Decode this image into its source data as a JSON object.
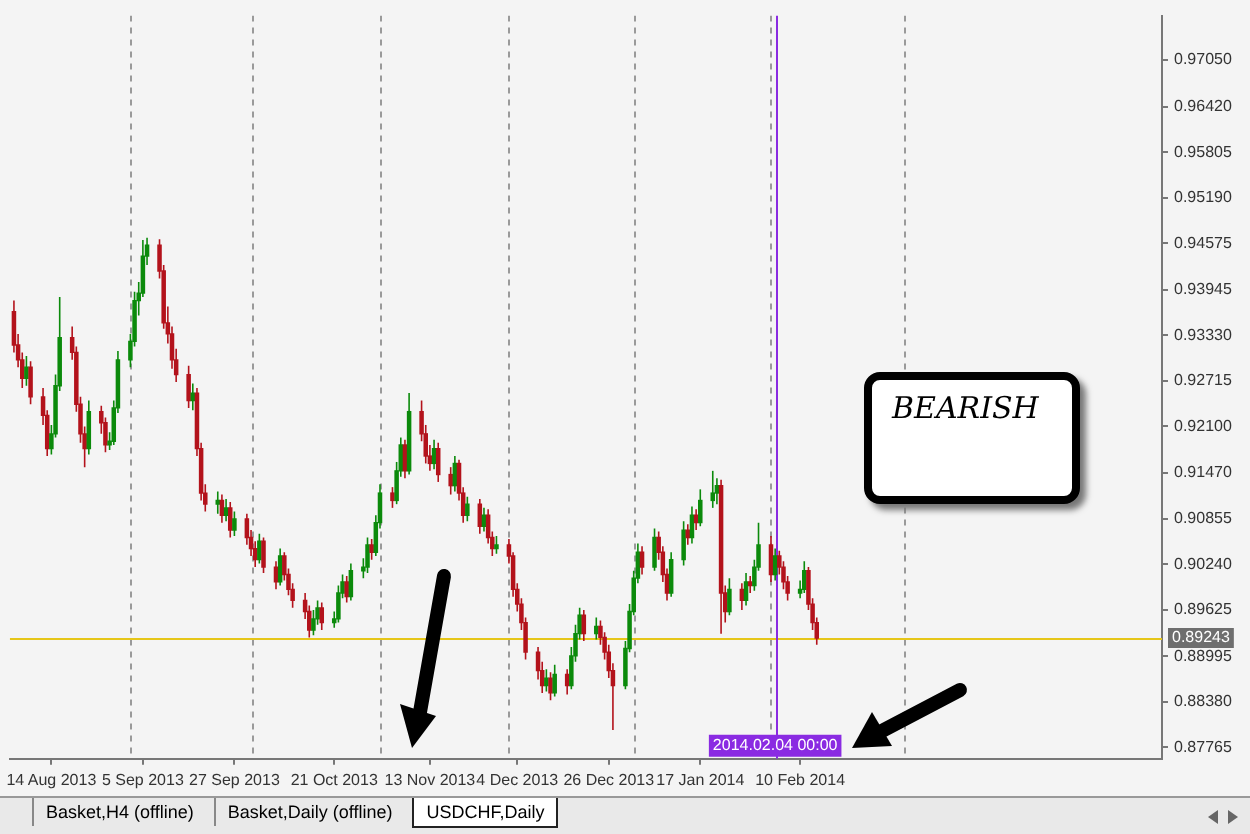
{
  "chart_data": {
    "type": "candlestick",
    "x": [
      "2013-08-05",
      "2013-08-06",
      "2013-08-07",
      "2013-08-08",
      "2013-08-09",
      "2013-08-12",
      "2013-08-13",
      "2013-08-14",
      "2013-08-15",
      "2013-08-16",
      "2013-08-19",
      "2013-08-20",
      "2013-08-21",
      "2013-08-22",
      "2013-08-23",
      "2013-08-26",
      "2013-08-27",
      "2013-08-28",
      "2013-08-29",
      "2013-08-30",
      "2013-09-02",
      "2013-09-03",
      "2013-09-04",
      "2013-09-05",
      "2013-09-06",
      "2013-09-09",
      "2013-09-10",
      "2013-09-11",
      "2013-09-12",
      "2013-09-13",
      "2013-09-16",
      "2013-09-17",
      "2013-09-18",
      "2013-09-19",
      "2013-09-20",
      "2013-09-23",
      "2013-09-24",
      "2013-09-25",
      "2013-09-26",
      "2013-09-27",
      "2013-09-30",
      "2013-10-01",
      "2013-10-02",
      "2013-10-03",
      "2013-10-04",
      "2013-10-07",
      "2013-10-08",
      "2013-10-09",
      "2013-10-10",
      "2013-10-11",
      "2013-10-14",
      "2013-10-15",
      "2013-10-16",
      "2013-10-17",
      "2013-10-18",
      "2013-10-21",
      "2013-10-22",
      "2013-10-23",
      "2013-10-24",
      "2013-10-25",
      "2013-10-28",
      "2013-10-29",
      "2013-10-30",
      "2013-10-31",
      "2013-11-01",
      "2013-11-04",
      "2013-11-05",
      "2013-11-06",
      "2013-11-07",
      "2013-11-08",
      "2013-11-11",
      "2013-11-12",
      "2013-11-13",
      "2013-11-14",
      "2013-11-15",
      "2013-11-18",
      "2013-11-19",
      "2013-11-20",
      "2013-11-21",
      "2013-11-22",
      "2013-11-25",
      "2013-11-26",
      "2013-11-27",
      "2013-11-28",
      "2013-11-29",
      "2013-12-02",
      "2013-12-03",
      "2013-12-04",
      "2013-12-05",
      "2013-12-06",
      "2013-12-09",
      "2013-12-10",
      "2013-12-11",
      "2013-12-12",
      "2013-12-13",
      "2013-12-16",
      "2013-12-17",
      "2013-12-18",
      "2013-12-19",
      "2013-12-20",
      "2013-12-23",
      "2013-12-24",
      "2013-12-25",
      "2013-12-26",
      "2013-12-27",
      "2013-12-30",
      "2013-12-31",
      "2014-01-01",
      "2014-01-02",
      "2014-01-03",
      "2014-01-06",
      "2014-01-07",
      "2014-01-08",
      "2014-01-09",
      "2014-01-10",
      "2014-01-13",
      "2014-01-14",
      "2014-01-15",
      "2014-01-16",
      "2014-01-17",
      "2014-01-20",
      "2014-01-21",
      "2014-01-22",
      "2014-01-23",
      "2014-01-24",
      "2014-01-27",
      "2014-01-28",
      "2014-01-29",
      "2014-01-30",
      "2014-01-31",
      "2014-02-03",
      "2014-02-04",
      "2014-02-05",
      "2014-02-06",
      "2014-02-07",
      "2014-02-10",
      "2014-02-11",
      "2014-02-12",
      "2014-02-13",
      "2014-02-14"
    ],
    "ohlc": [
      [
        0.9365,
        0.938,
        0.931,
        0.932
      ],
      [
        0.932,
        0.9335,
        0.929,
        0.93
      ],
      [
        0.93,
        0.931,
        0.9262,
        0.9275
      ],
      [
        0.9275,
        0.9305,
        0.9265,
        0.929
      ],
      [
        0.929,
        0.9298,
        0.924,
        0.925
      ],
      [
        0.925,
        0.9262,
        0.9212,
        0.9225
      ],
      [
        0.9225,
        0.9232,
        0.917,
        0.918
      ],
      [
        0.918,
        0.9212,
        0.9172,
        0.92
      ],
      [
        0.92,
        0.928,
        0.9195,
        0.9265
      ],
      [
        0.9265,
        0.9385,
        0.9258,
        0.933
      ],
      [
        0.933,
        0.9345,
        0.93,
        0.931
      ],
      [
        0.931,
        0.9318,
        0.923,
        0.924
      ],
      [
        0.924,
        0.925,
        0.9188,
        0.92
      ],
      [
        0.92,
        0.921,
        0.9155,
        0.918
      ],
      [
        0.918,
        0.9245,
        0.9172,
        0.923
      ],
      [
        0.923,
        0.9238,
        0.92,
        0.9215
      ],
      [
        0.9215,
        0.9222,
        0.9175,
        0.9185
      ],
      [
        0.9185,
        0.9202,
        0.9178,
        0.919
      ],
      [
        0.919,
        0.9245,
        0.9185,
        0.9235
      ],
      [
        0.9235,
        0.9312,
        0.9228,
        0.93
      ],
      [
        0.93,
        0.9335,
        0.929,
        0.9325
      ],
      [
        0.9325,
        0.9392,
        0.9318,
        0.938
      ],
      [
        0.938,
        0.9405,
        0.936,
        0.939
      ],
      [
        0.939,
        0.9462,
        0.9385,
        0.944
      ],
      [
        0.944,
        0.9465,
        0.9428,
        0.9455
      ],
      [
        0.9455,
        0.9463,
        0.941,
        0.942
      ],
      [
        0.942,
        0.9428,
        0.9342,
        0.935
      ],
      [
        0.935,
        0.9372,
        0.9322,
        0.9335
      ],
      [
        0.9335,
        0.9345,
        0.9288,
        0.93
      ],
      [
        0.93,
        0.9315,
        0.927,
        0.928
      ],
      [
        0.928,
        0.9292,
        0.9235,
        0.9245
      ],
      [
        0.9245,
        0.9268,
        0.9232,
        0.9255
      ],
      [
        0.9255,
        0.9262,
        0.917,
        0.918
      ],
      [
        0.918,
        0.9188,
        0.911,
        0.912
      ],
      [
        0.912,
        0.9132,
        0.9095,
        0.9105
      ],
      [
        0.9105,
        0.9122,
        0.9092,
        0.911
      ],
      [
        0.911,
        0.9118,
        0.908,
        0.909
      ],
      [
        0.909,
        0.9112,
        0.9082,
        0.91
      ],
      [
        0.91,
        0.9108,
        0.906,
        0.907
      ],
      [
        0.907,
        0.9095,
        0.9062,
        0.9085
      ],
      [
        0.9085,
        0.9092,
        0.905,
        0.906
      ],
      [
        0.906,
        0.907,
        0.9035,
        0.9045
      ],
      [
        0.9045,
        0.9055,
        0.902,
        0.903
      ],
      [
        0.903,
        0.9065,
        0.9025,
        0.9055
      ],
      [
        0.9055,
        0.906,
        0.9012,
        0.902
      ],
      [
        0.902,
        0.9028,
        0.899,
        0.9
      ],
      [
        0.9,
        0.9045,
        0.8995,
        0.9035
      ],
      [
        0.9035,
        0.904,
        0.9002,
        0.901
      ],
      [
        0.901,
        0.9018,
        0.8982,
        0.899
      ],
      [
        0.899,
        0.8998,
        0.8965,
        0.8975
      ],
      [
        0.8975,
        0.8985,
        0.895,
        0.896
      ],
      [
        0.896,
        0.8968,
        0.8925,
        0.8935
      ],
      [
        0.8935,
        0.8962,
        0.8928,
        0.895
      ],
      [
        0.895,
        0.8975,
        0.8942,
        0.8965
      ],
      [
        0.8965,
        0.8972,
        0.8935,
        0.8945
      ],
      [
        0.8945,
        0.896,
        0.8938,
        0.895
      ],
      [
        0.895,
        0.8995,
        0.8945,
        0.8985
      ],
      [
        0.8985,
        0.901,
        0.8978,
        0.9
      ],
      [
        0.9,
        0.9008,
        0.8972,
        0.898
      ],
      [
        0.898,
        0.9025,
        0.8975,
        0.9015
      ],
      [
        0.9015,
        0.9032,
        0.9005,
        0.902
      ],
      [
        0.902,
        0.906,
        0.9012,
        0.905
      ],
      [
        0.905,
        0.9058,
        0.903,
        0.904
      ],
      [
        0.904,
        0.909,
        0.9035,
        0.908
      ],
      [
        0.908,
        0.9132,
        0.9072,
        0.912
      ],
      [
        0.912,
        0.9128,
        0.91,
        0.911
      ],
      [
        0.911,
        0.9162,
        0.9105,
        0.915
      ],
      [
        0.915,
        0.9195,
        0.9142,
        0.9185
      ],
      [
        0.9185,
        0.9192,
        0.914,
        0.915
      ],
      [
        0.915,
        0.9255,
        0.9145,
        0.923
      ],
      [
        0.923,
        0.9245,
        0.919,
        0.92
      ],
      [
        0.92,
        0.9212,
        0.916,
        0.917
      ],
      [
        0.917,
        0.9185,
        0.915,
        0.916
      ],
      [
        0.916,
        0.9192,
        0.9152,
        0.918
      ],
      [
        0.918,
        0.9188,
        0.9135,
        0.9145
      ],
      [
        0.9145,
        0.9155,
        0.9118,
        0.913
      ],
      [
        0.913,
        0.917,
        0.9122,
        0.916
      ],
      [
        0.916,
        0.9165,
        0.911,
        0.912
      ],
      [
        0.912,
        0.9128,
        0.908,
        0.909
      ],
      [
        0.909,
        0.9115,
        0.9082,
        0.9105
      ],
      [
        0.9105,
        0.9112,
        0.9065,
        0.9075
      ],
      [
        0.9075,
        0.91,
        0.9068,
        0.909
      ],
      [
        0.909,
        0.9098,
        0.9052,
        0.906
      ],
      [
        0.906,
        0.9068,
        0.9035,
        0.9045
      ],
      [
        0.9045,
        0.9062,
        0.9038,
        0.905
      ],
      [
        0.905,
        0.9058,
        0.9025,
        0.9035
      ],
      [
        0.9035,
        0.904,
        0.898,
        0.899
      ],
      [
        0.899,
        0.8998,
        0.896,
        0.897
      ],
      [
        0.897,
        0.8978,
        0.8935,
        0.8945
      ],
      [
        0.8945,
        0.8952,
        0.8895,
        0.8905
      ],
      [
        0.8905,
        0.8912,
        0.8868,
        0.888
      ],
      [
        0.888,
        0.8892,
        0.885,
        0.886
      ],
      [
        0.886,
        0.8882,
        0.8852,
        0.887
      ],
      [
        0.887,
        0.8878,
        0.884,
        0.885
      ],
      [
        0.885,
        0.8888,
        0.8845,
        0.8875
      ],
      [
        0.8875,
        0.8882,
        0.8848,
        0.886
      ],
      [
        0.886,
        0.8912,
        0.8855,
        0.89
      ],
      [
        0.89,
        0.8942,
        0.8892,
        0.893
      ],
      [
        0.893,
        0.8965,
        0.8922,
        0.8955
      ],
      [
        0.8955,
        0.8962,
        0.892,
        0.893
      ],
      [
        0.893,
        0.8952,
        0.8922,
        0.894
      ],
      [
        0.894,
        0.8948,
        0.8915,
        0.8925
      ],
      [
        0.8925,
        0.8932,
        0.8895,
        0.8905
      ],
      [
        0.8905,
        0.8915,
        0.887,
        0.888
      ],
      [
        0.888,
        0.889,
        0.88,
        0.886
      ],
      [
        0.886,
        0.892,
        0.8855,
        0.891
      ],
      [
        0.891,
        0.897,
        0.8905,
        0.896
      ],
      [
        0.896,
        0.9015,
        0.8955,
        0.9005
      ],
      [
        0.9005,
        0.9052,
        0.8998,
        0.904
      ],
      [
        0.904,
        0.9048,
        0.901,
        0.902
      ],
      [
        0.902,
        0.9072,
        0.9015,
        0.906
      ],
      [
        0.906,
        0.9068,
        0.903,
        0.904
      ],
      [
        0.904,
        0.9048,
        0.9,
        0.901
      ],
      [
        0.901,
        0.9018,
        0.8975,
        0.8985
      ],
      [
        0.8985,
        0.904,
        0.898,
        0.903
      ],
      [
        0.903,
        0.9082,
        0.9022,
        0.907
      ],
      [
        0.907,
        0.9078,
        0.905,
        0.906
      ],
      [
        0.906,
        0.9102,
        0.9052,
        0.909
      ],
      [
        0.909,
        0.9098,
        0.907,
        0.908
      ],
      [
        0.908,
        0.9125,
        0.9075,
        0.911
      ],
      [
        0.911,
        0.915,
        0.91,
        0.912
      ],
      [
        0.912,
        0.914,
        0.9105,
        0.913
      ],
      [
        0.913,
        0.9138,
        0.893,
        0.8985
      ],
      [
        0.8985,
        0.8995,
        0.8945,
        0.896
      ],
      [
        0.896,
        0.9005,
        0.8955,
        0.899
      ],
      [
        0.899,
        0.8998,
        0.8962,
        0.8975
      ],
      [
        0.8975,
        0.9012,
        0.8968,
        0.9
      ],
      [
        0.9,
        0.9008,
        0.8985,
        0.8995
      ],
      [
        0.8995,
        0.903,
        0.8988,
        0.902
      ],
      [
        0.902,
        0.908,
        0.9015,
        0.905
      ],
      [
        0.905,
        0.9062,
        0.9,
        0.901
      ],
      [
        0.901,
        0.9045,
        0.9002,
        0.9035
      ],
      [
        0.9035,
        0.9042,
        0.901,
        0.902
      ],
      [
        0.902,
        0.9028,
        0.899,
        0.9
      ],
      [
        0.9,
        0.9008,
        0.8975,
        0.8985
      ],
      [
        0.8985,
        0.9002,
        0.8978,
        0.899
      ],
      [
        0.899,
        0.9028,
        0.8985,
        0.9015
      ],
      [
        0.9015,
        0.902,
        0.8962,
        0.897
      ],
      [
        0.897,
        0.8978,
        0.8935,
        0.8945
      ],
      [
        0.8945,
        0.8952,
        0.8915,
        0.8924
      ]
    ],
    "colors": [
      "#b3121b",
      "#b3121b",
      "#b3121b",
      "#0b8a0b",
      "#b3121b",
      "#b3121b",
      "#b3121b",
      "#0b8a0b",
      "#0b8a0b",
      "#0b8a0b",
      "#b3121b",
      "#b3121b",
      "#b3121b",
      "#b3121b",
      "#0b8a0b",
      "#b3121b",
      "#b3121b",
      "#0b8a0b",
      "#0b8a0b",
      "#0b8a0b",
      "#0b8a0b",
      "#0b8a0b",
      "#0b8a0b",
      "#0b8a0b",
      "#0b8a0b",
      "#b3121b",
      "#b3121b",
      "#b3121b",
      "#b3121b",
      "#b3121b",
      "#b3121b",
      "#0b8a0b",
      "#b3121b",
      "#b3121b",
      "#b3121b",
      "#0b8a0b",
      "#b3121b",
      "#0b8a0b",
      "#b3121b",
      "#0b8a0b",
      "#b3121b",
      "#b3121b",
      "#b3121b",
      "#0b8a0b",
      "#b3121b",
      "#b3121b",
      "#0b8a0b",
      "#b3121b",
      "#b3121b",
      "#b3121b",
      "#b3121b",
      "#b3121b",
      "#0b8a0b",
      "#0b8a0b",
      "#b3121b",
      "#0b8a0b",
      "#0b8a0b",
      "#0b8a0b",
      "#b3121b",
      "#0b8a0b",
      "#0b8a0b",
      "#0b8a0b",
      "#b3121b",
      "#0b8a0b",
      "#0b8a0b",
      "#b3121b",
      "#0b8a0b",
      "#0b8a0b",
      "#b3121b",
      "#0b8a0b",
      "#b3121b",
      "#b3121b",
      "#b3121b",
      "#0b8a0b",
      "#b3121b",
      "#b3121b",
      "#0b8a0b",
      "#b3121b",
      "#b3121b",
      "#0b8a0b",
      "#b3121b",
      "#0b8a0b",
      "#b3121b",
      "#b3121b",
      "#0b8a0b",
      "#b3121b",
      "#b3121b",
      "#b3121b",
      "#b3121b",
      "#b3121b",
      "#b3121b",
      "#b3121b",
      "#0b8a0b",
      "#b3121b",
      "#0b8a0b",
      "#b3121b",
      "#0b8a0b",
      "#0b8a0b",
      "#0b8a0b",
      "#b3121b",
      "#0b8a0b",
      "#b3121b",
      "#b3121b",
      "#b3121b",
      "#b3121b",
      "#0b8a0b",
      "#0b8a0b",
      "#0b8a0b",
      "#0b8a0b",
      "#b3121b",
      "#0b8a0b",
      "#b3121b",
      "#b3121b",
      "#b3121b",
      "#0b8a0b",
      "#0b8a0b",
      "#b3121b",
      "#0b8a0b",
      "#b3121b",
      "#0b8a0b",
      "#0b8a0b",
      "#0b8a0b",
      "#b3121b",
      "#b3121b",
      "#0b8a0b",
      "#b3121b",
      "#0b8a0b",
      "#b3121b",
      "#0b8a0b",
      "#0b8a0b",
      "#b3121b",
      "#0b8a0b",
      "#b3121b",
      "#b3121b",
      "#b3121b",
      "#0b8a0b",
      "#0b8a0b",
      "#b3121b",
      "#b3121b",
      "#b3121b"
    ],
    "xlim": [
      "2013-08-04",
      "2014-05-08"
    ],
    "xticks": [
      {
        "value": "2013-08-14",
        "label": "14 Aug 2013"
      },
      {
        "value": "2013-09-05",
        "label": "5 Sep 2013"
      },
      {
        "value": "2013-09-27",
        "label": "27 Sep 2013"
      },
      {
        "value": "2013-10-21",
        "label": "21 Oct 2013"
      },
      {
        "value": "2013-11-13",
        "label": "13 Nov 2013"
      },
      {
        "value": "2013-12-04",
        "label": "4 Dec 2013"
      },
      {
        "value": "2013-12-26",
        "label": "26 Dec 2013"
      },
      {
        "value": "2014-01-17",
        "label": "17 Jan 2014"
      },
      {
        "value": "2014-02-10",
        "label": "10 Feb 2014"
      }
    ],
    "ylim": [
      0.8761,
      0.9765
    ],
    "yticks": [
      {
        "value": 0.87765,
        "label": "0.87765"
      },
      {
        "value": 0.8838,
        "label": "0.88380"
      },
      {
        "value": 0.88995,
        "label": "0.88995"
      },
      {
        "value": 0.89625,
        "label": "0.89625"
      },
      {
        "value": 0.9024,
        "label": "0.90240"
      },
      {
        "value": 0.90855,
        "label": "0.90855"
      },
      {
        "value": 0.9147,
        "label": "0.91470"
      },
      {
        "value": 0.921,
        "label": "0.92100"
      },
      {
        "value": 0.92715,
        "label": "0.92715"
      },
      {
        "value": 0.9333,
        "label": "0.93330"
      },
      {
        "value": 0.93945,
        "label": "0.93945"
      },
      {
        "value": 0.94575,
        "label": "0.94575"
      },
      {
        "value": 0.9519,
        "label": "0.95190"
      },
      {
        "value": 0.95805,
        "label": "0.95805"
      },
      {
        "value": 0.9642,
        "label": "0.96420"
      },
      {
        "value": 0.9705,
        "label": "0.97050"
      }
    ],
    "ref_lines": [
      {
        "axis": "x",
        "value": "2013-09-02",
        "color": "#9a9a9a",
        "line_style": "dashed"
      },
      {
        "axis": "x",
        "value": "2013-10-01",
        "color": "#9a9a9a",
        "line_style": "dashed"
      },
      {
        "axis": "x",
        "value": "2013-11-01",
        "color": "#9a9a9a",
        "line_style": "dashed"
      },
      {
        "axis": "x",
        "value": "2013-12-02",
        "color": "#9a9a9a",
        "line_style": "dashed"
      },
      {
        "axis": "x",
        "value": "2014-01-01",
        "color": "#9a9a9a",
        "line_style": "dashed"
      },
      {
        "axis": "x",
        "value": "2014-02-03",
        "color": "#9a9a9a",
        "line_style": "dashed"
      },
      {
        "axis": "x",
        "value": "2014-03-07",
        "color": "#9a9a9a",
        "line_style": "dashed"
      },
      {
        "axis": "y",
        "value": 0.89243,
        "label": "0.89243",
        "color": "#e6c619"
      },
      {
        "axis": "x",
        "value": "2014-02-04",
        "label": "2014.02.04 00:00",
        "color": "#8a2be2"
      }
    ],
    "annotations": [
      "BEARISH",
      "Basket,H4 (offline)",
      "Basket,Daily (offline)",
      "USDCHF,Daily"
    ]
  }
}
